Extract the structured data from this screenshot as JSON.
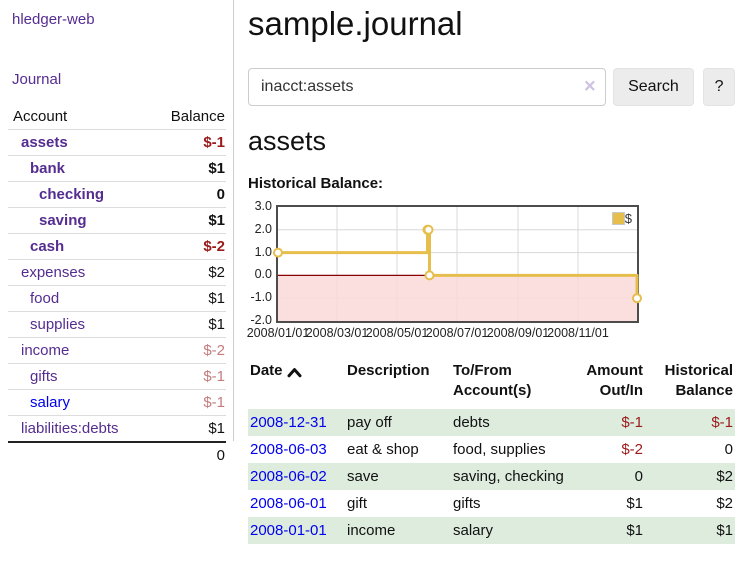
{
  "app_title": "hledger-web",
  "sidebar": {
    "journal_label": "Journal",
    "accounts": {
      "header_account": "Account",
      "header_balance": "Balance",
      "rows": [
        {
          "name": "assets",
          "balance": "$-1",
          "depth": 1,
          "bold": true,
          "neg": "strong",
          "visited": true
        },
        {
          "name": "bank",
          "balance": "$1",
          "depth": 2,
          "bold": true,
          "neg": null,
          "visited": true
        },
        {
          "name": "checking",
          "balance": "0",
          "depth": 3,
          "bold": true,
          "neg": null,
          "visited": true
        },
        {
          "name": "saving",
          "balance": "$1",
          "depth": 3,
          "bold": true,
          "neg": null,
          "visited": true
        },
        {
          "name": "cash",
          "balance": "$-2",
          "depth": 2,
          "bold": true,
          "neg": "strong",
          "visited": true
        },
        {
          "name": "expenses",
          "balance": "$2",
          "depth": 1,
          "bold": false,
          "neg": null,
          "visited": true
        },
        {
          "name": "food",
          "balance": "$1",
          "depth": 2,
          "bold": false,
          "neg": null,
          "visited": true
        },
        {
          "name": "supplies",
          "balance": "$1",
          "depth": 2,
          "bold": false,
          "neg": null,
          "visited": true
        },
        {
          "name": "income",
          "balance": "$-2",
          "depth": 1,
          "bold": false,
          "neg": "muted",
          "visited": true
        },
        {
          "name": "gifts",
          "balance": "$-1",
          "depth": 2,
          "bold": false,
          "neg": "muted",
          "visited": true
        },
        {
          "name": "salary",
          "balance": "$-1",
          "depth": 2,
          "bold": false,
          "neg": "muted",
          "visited": false
        },
        {
          "name": "liabilities:debts",
          "balance": "$1",
          "depth": 1,
          "bold": false,
          "neg": null,
          "visited": true
        }
      ],
      "total": "0"
    }
  },
  "main": {
    "title": "sample.journal",
    "search": {
      "value": "inacct:assets",
      "clear_icon": "×",
      "button_label": "Search",
      "help_label": "?"
    },
    "account_heading": "assets",
    "chart_label": "Historical Balance:"
  },
  "chart_data": {
    "type": "line",
    "step": true,
    "title": "Historical Balance:",
    "series": [
      {
        "name": "$",
        "points": [
          [
            "2008-01-01",
            1
          ],
          [
            "2008-06-01",
            2
          ],
          [
            "2008-06-02",
            2
          ],
          [
            "2008-06-03",
            0
          ],
          [
            "2008-12-31",
            -1
          ]
        ]
      }
    ],
    "x_range": [
      "2008-01-01",
      "2008-12-31"
    ],
    "y_range": [
      -2,
      3
    ],
    "y_ticks": [
      3,
      2,
      1,
      0,
      -1,
      -2
    ],
    "x_ticks": [
      {
        "date": "2008-01-01",
        "label": "2008/01/01"
      },
      {
        "date": "2008-03-01",
        "label": "2008/03/01"
      },
      {
        "date": "2008-05-01",
        "label": "2008/05/01"
      },
      {
        "date": "2008-07-01",
        "label": "2008/07/01"
      },
      {
        "date": "2008-09-01",
        "label": "2008/09/01"
      },
      {
        "date": "2008-11-01",
        "label": "2008/11/01"
      }
    ],
    "legend": {
      "label": "$",
      "position": "top-right"
    },
    "grid": true,
    "colors": {
      "line": "#E6BE4C",
      "marker_fill": "#FFFFFF",
      "negative_region": "#FADADA",
      "zero_line": "#8B0000",
      "grid": "#D8D8D8",
      "border": "#4C4C4C"
    }
  },
  "register": {
    "headers": {
      "date": "Date",
      "description": "Description",
      "accounts": "To/From Account(s)",
      "amount": "Amount Out/In",
      "balance": "Historical Balance"
    },
    "sort": "ascending",
    "rows": [
      {
        "date": "2008-12-31",
        "description": "pay off",
        "accounts": "debts",
        "amount": "$-1",
        "balance": "$-1",
        "amount_neg": true,
        "balance_neg": true,
        "shaded": true
      },
      {
        "date": "2008-06-03",
        "description": "eat & shop",
        "accounts": "food, supplies",
        "amount": "$-2",
        "balance": "0",
        "amount_neg": true,
        "balance_neg": false,
        "shaded": false
      },
      {
        "date": "2008-06-02",
        "description": "save",
        "accounts": "saving, checking",
        "amount": "0",
        "balance": "$2",
        "amount_neg": false,
        "balance_neg": false,
        "shaded": true
      },
      {
        "date": "2008-06-01",
        "description": "gift",
        "accounts": "gifts",
        "amount": "$1",
        "balance": "$2",
        "amount_neg": false,
        "balance_neg": false,
        "shaded": false
      },
      {
        "date": "2008-01-01",
        "description": "income",
        "accounts": "salary",
        "amount": "$1",
        "balance": "$1",
        "amount_neg": false,
        "balance_neg": false,
        "shaded": true
      }
    ]
  },
  "colors": {
    "link_visited": "#552D90",
    "link_unvisited": "#0000EE",
    "negative_strong": "#9B1A1A",
    "negative_muted": "#C47C7C",
    "row_shade": "#DEECDE"
  }
}
